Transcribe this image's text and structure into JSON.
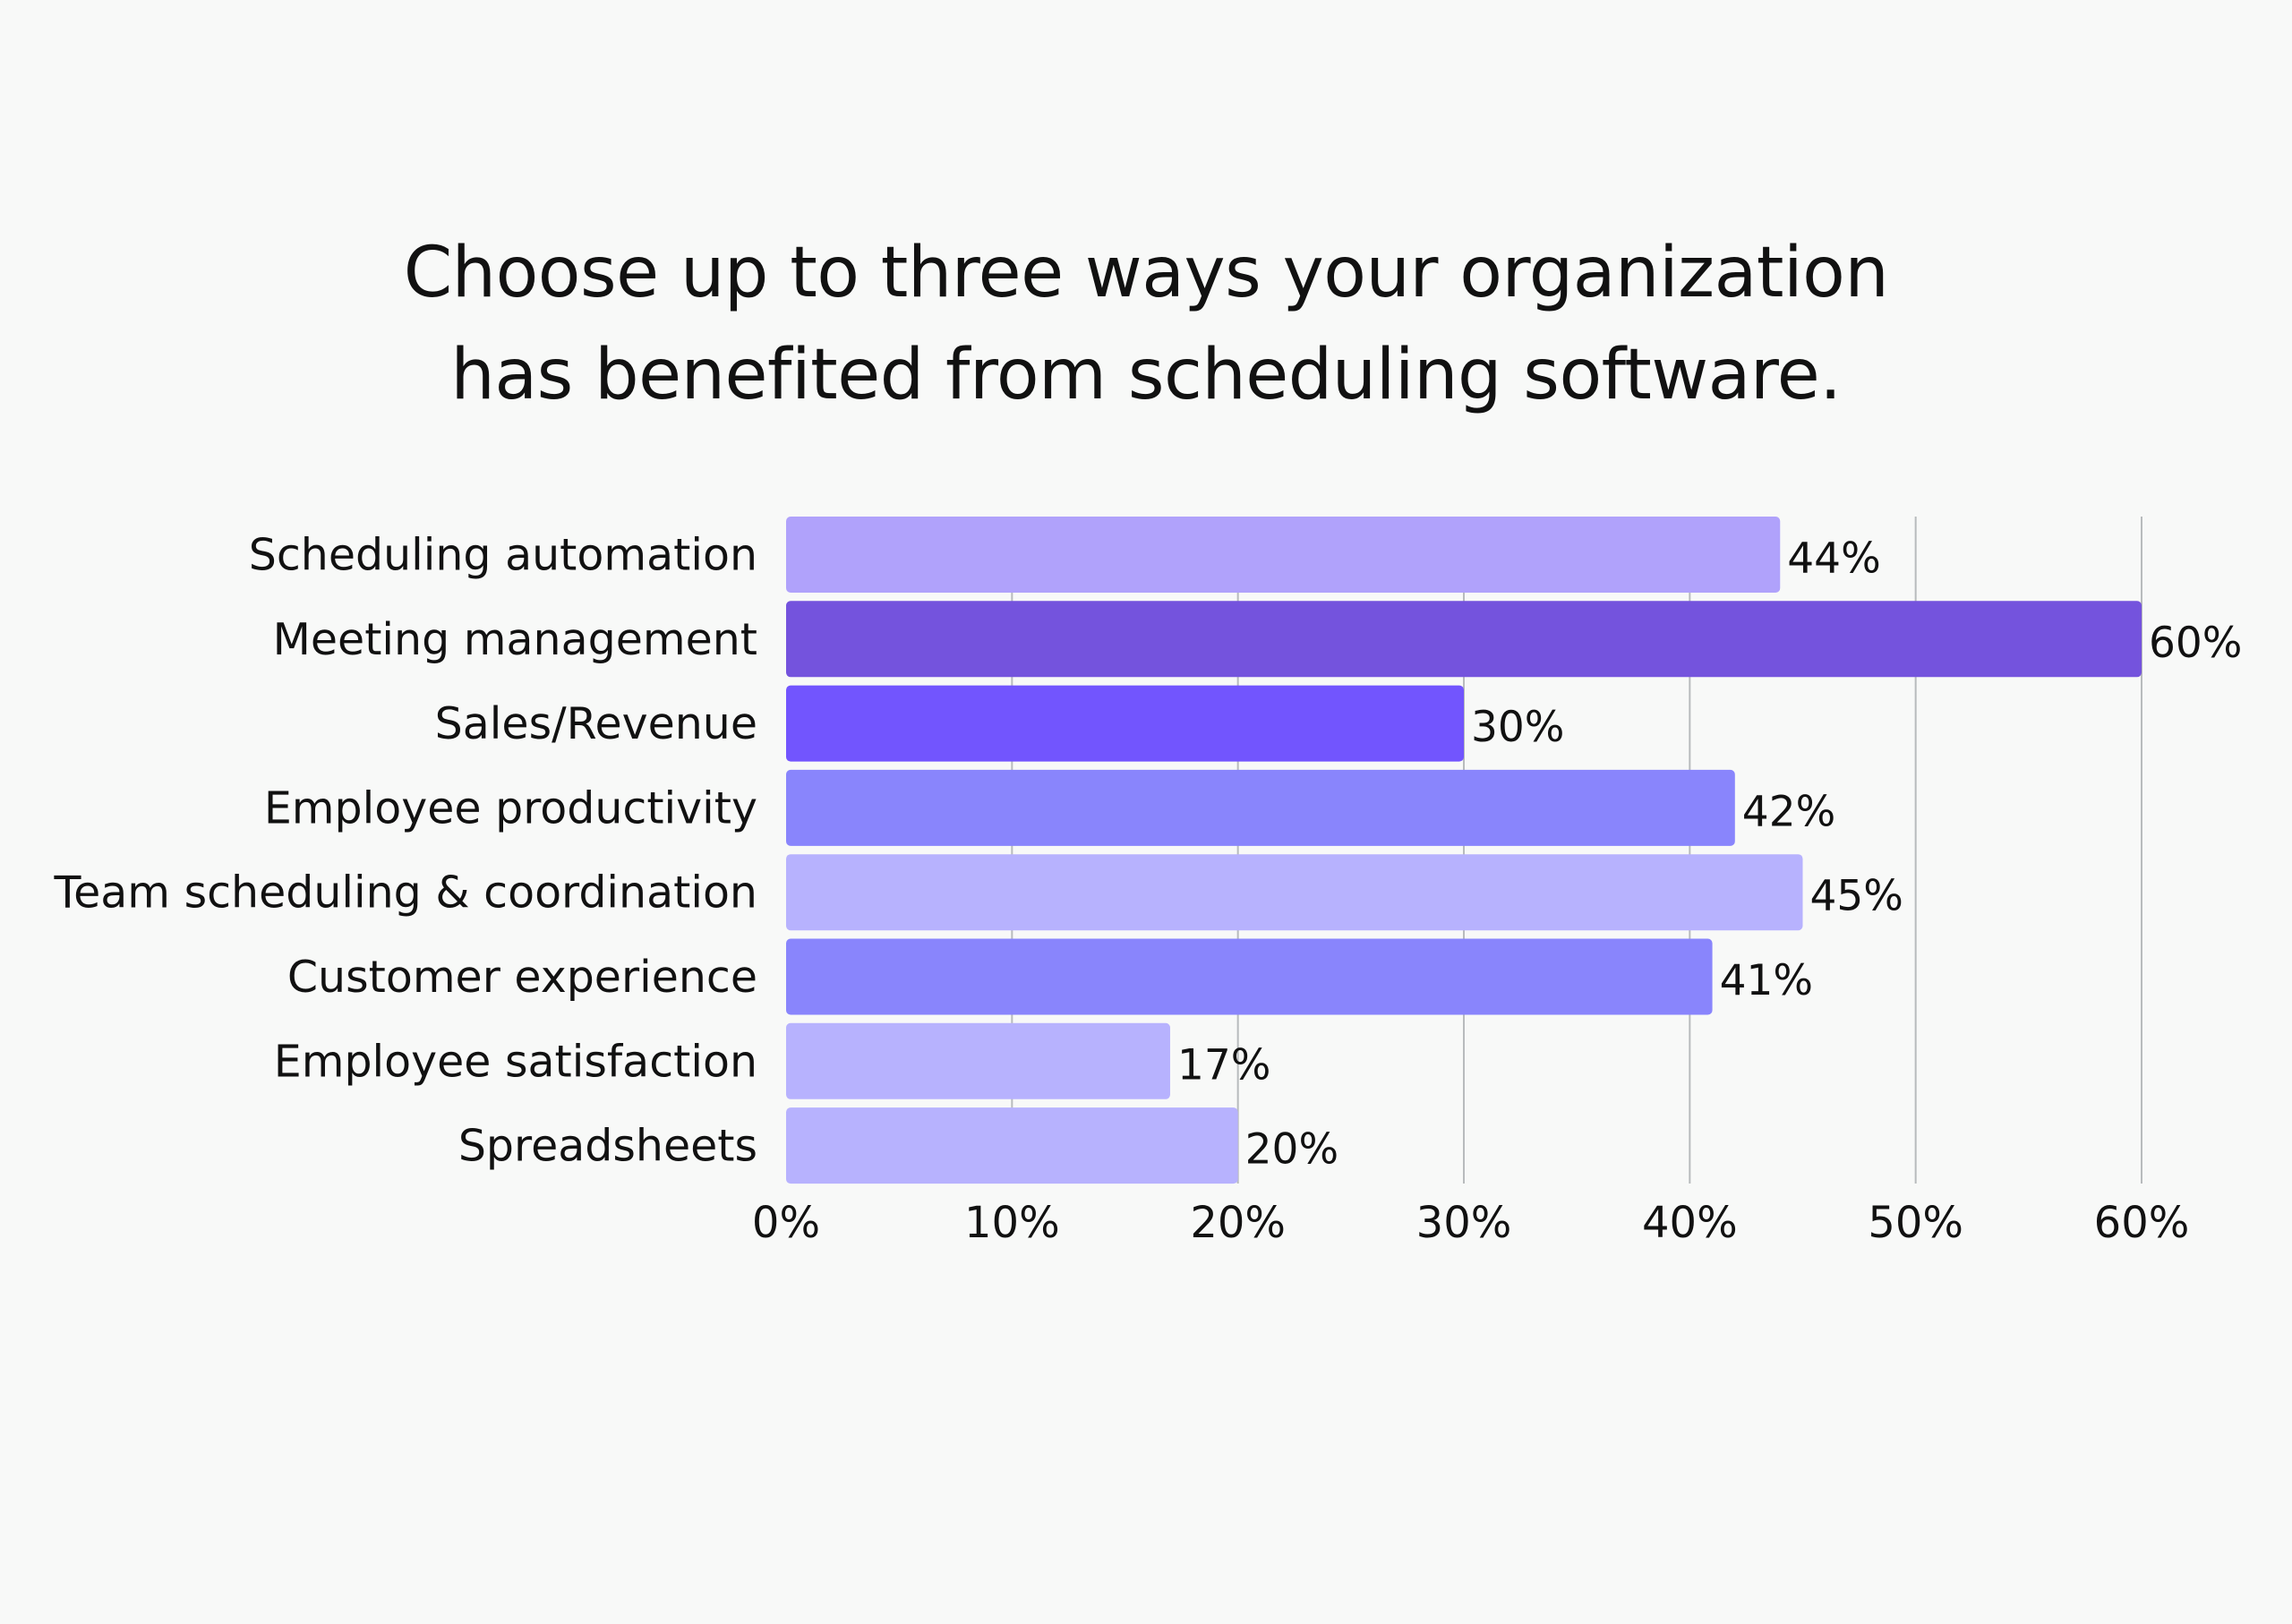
{
  "chart_data": {
    "type": "bar",
    "orientation": "horizontal",
    "title": "Choose up to three ways your organization has benefited from scheduling software.",
    "title_lines": [
      "Choose up to three ways your organization",
      "has benefited from scheduling software."
    ],
    "categories": [
      "Scheduling automation",
      "Meeting management",
      "Sales/Revenue",
      "Employee productivity",
      "Team scheduling & coordination",
      "Customer experience",
      "Employee satisfaction",
      "Spreadsheets"
    ],
    "values": [
      44,
      60,
      30,
      42,
      45,
      41,
      17,
      20
    ],
    "value_labels": [
      "44%",
      "60%",
      "30%",
      "42%",
      "45%",
      "41%",
      "17%",
      "20%"
    ],
    "bar_colors": [
      "#b0a2fb",
      "#7453dd",
      "#7255fe",
      "#8985fc",
      "#b7b2fe",
      "#8985fc",
      "#b7b2fe",
      "#b7b2fe"
    ],
    "xlim": [
      0,
      60
    ],
    "x_ticks": [
      0,
      10,
      20,
      30,
      40,
      50,
      60
    ],
    "x_tick_labels": [
      "0%",
      "10%",
      "20%",
      "30%",
      "40%",
      "50%",
      "60%"
    ],
    "grid": true,
    "legend": "none",
    "xlabel": "",
    "ylabel": ""
  },
  "colors": {
    "background": "#f8f9f8",
    "text": "#111111",
    "grid": "#b8bbbd"
  }
}
